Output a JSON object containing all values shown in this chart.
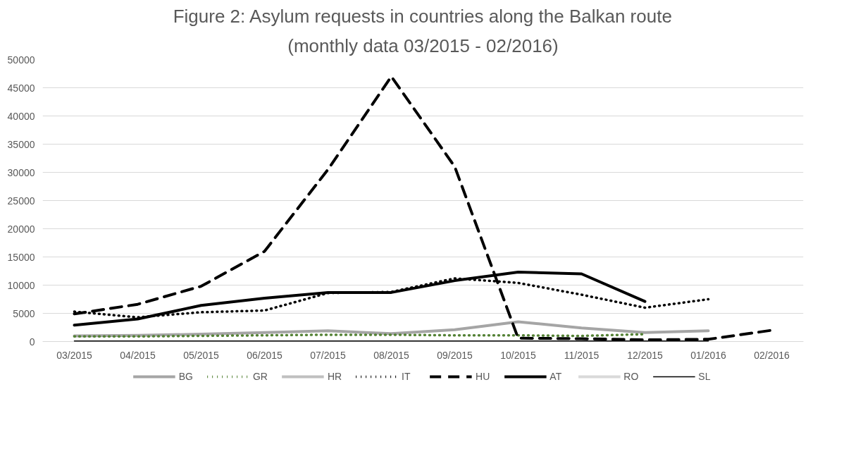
{
  "chart_data": {
    "type": "line",
    "title": "Figure 2: Asylum requests in countries along the Balkan route",
    "subtitle": "(monthly data 03/2015 - 02/2016)",
    "categories": [
      "03/2015",
      "04/2015",
      "05/2015",
      "06/2015",
      "07/2015",
      "08/2015",
      "09/2015",
      "10/2015",
      "11/2015",
      "12/2015",
      "01/2016",
      "02/2016"
    ],
    "ylim": [
      0,
      50000
    ],
    "yticks": [
      0,
      5000,
      10000,
      15000,
      20000,
      25000,
      30000,
      35000,
      40000,
      45000,
      50000
    ],
    "grid": "y",
    "legend": "bottom",
    "marker": "none",
    "series": [
      {
        "name": "BG",
        "color": "#a5a5a5",
        "line_style": "solid",
        "values": [
          1000,
          1100,
          1300,
          1600,
          1900,
          1400,
          2100,
          3500,
          2400,
          1600,
          1900,
          null
        ]
      },
      {
        "name": "GR",
        "color": "#548235",
        "line_style": "dotted",
        "values": [
          900,
          900,
          1000,
          1100,
          1200,
          1200,
          1100,
          1100,
          1000,
          1300,
          null,
          null
        ]
      },
      {
        "name": "HR",
        "color": "#bfbfbf",
        "line_style": "solid",
        "values": [
          null,
          null,
          null,
          null,
          null,
          null,
          null,
          null,
          null,
          null,
          null,
          null
        ]
      },
      {
        "name": "IT",
        "color": "#000000",
        "line_style": "dotted",
        "values": [
          5300,
          4300,
          5200,
          5500,
          8600,
          8800,
          11200,
          10400,
          8300,
          6000,
          7500,
          null
        ]
      },
      {
        "name": "HU",
        "color": "#000000",
        "line_style": "dashed",
        "values": [
          4900,
          6600,
          9800,
          16000,
          30500,
          47000,
          31000,
          600,
          500,
          300,
          400,
          2000
        ]
      },
      {
        "name": "AT",
        "color": "#000000",
        "line_style": "solid",
        "values": [
          2900,
          4000,
          6400,
          7700,
          8700,
          8700,
          10800,
          12300,
          12000,
          7100,
          null,
          null
        ]
      },
      {
        "name": "RO",
        "color": "#d9d9d9",
        "line_style": "solid",
        "values": [
          null,
          null,
          null,
          null,
          null,
          null,
          null,
          null,
          null,
          null,
          null,
          null
        ]
      },
      {
        "name": "SL",
        "color": "#000000",
        "line_style": "solid",
        "values": [
          100,
          100,
          100,
          100,
          100,
          100,
          100,
          100,
          100,
          100,
          100,
          null
        ]
      }
    ]
  }
}
